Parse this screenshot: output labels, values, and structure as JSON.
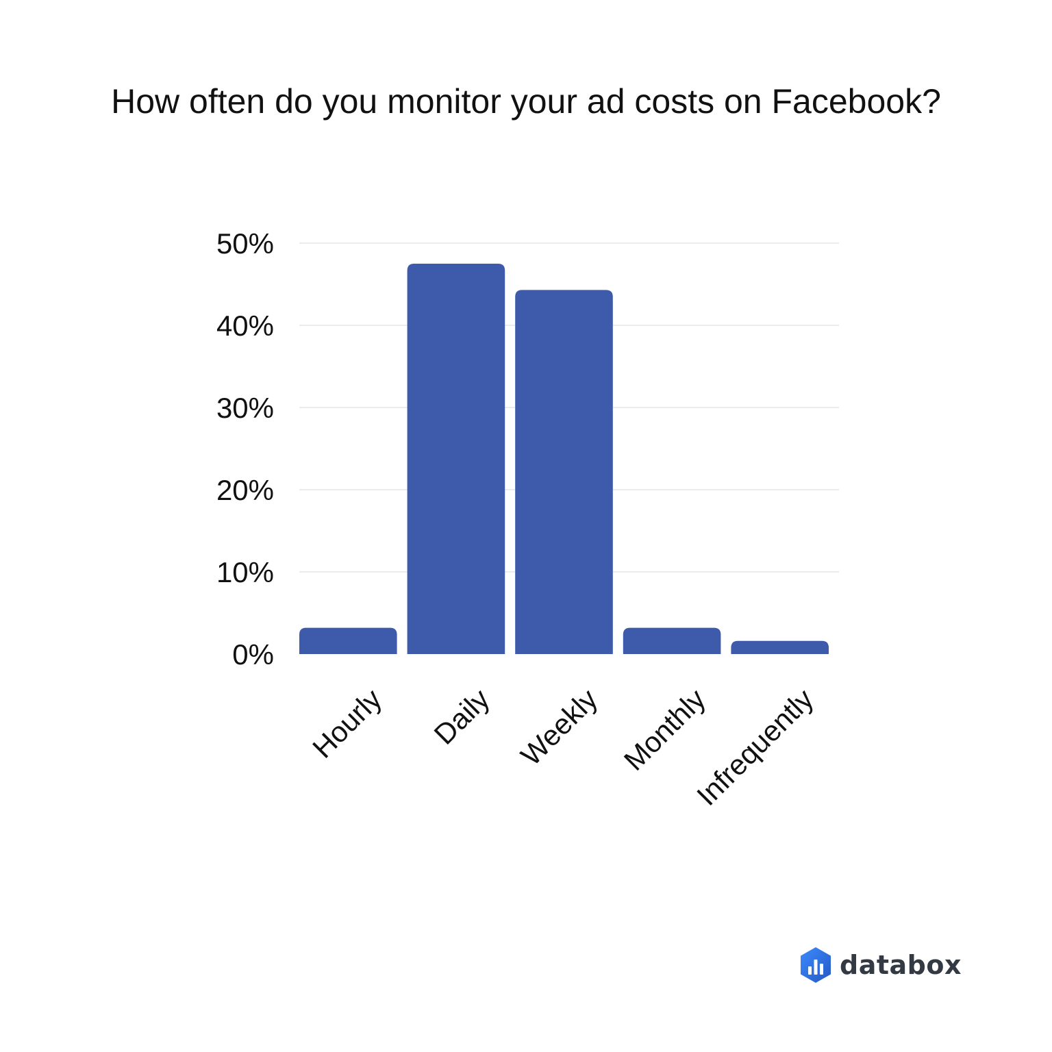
{
  "chart_data": {
    "type": "bar",
    "title": "How often do you monitor your ad costs on Facebook?",
    "categories": [
      "Hourly",
      "Daily",
      "Weekly",
      "Monthly",
      "Infrequently"
    ],
    "values": [
      3.2,
      47.5,
      44.3,
      3.2,
      1.6
    ],
    "ylim": [
      0,
      50
    ],
    "yticks": [
      0,
      10,
      20,
      30,
      40,
      50
    ],
    "ytick_labels": [
      "0%",
      "10%",
      "20%",
      "30%",
      "40%",
      "50%"
    ],
    "xlabel": "",
    "ylabel": "",
    "grid": true,
    "legend": "none",
    "bar_color": "#3d5aab",
    "grid_color": "#e6e6e6"
  },
  "brand": {
    "name": "databox",
    "logo_icon": "databox-hexagon-bar-chart-icon",
    "logo_colors": [
      "#2b6fd6",
      "#3d8bff"
    ]
  }
}
